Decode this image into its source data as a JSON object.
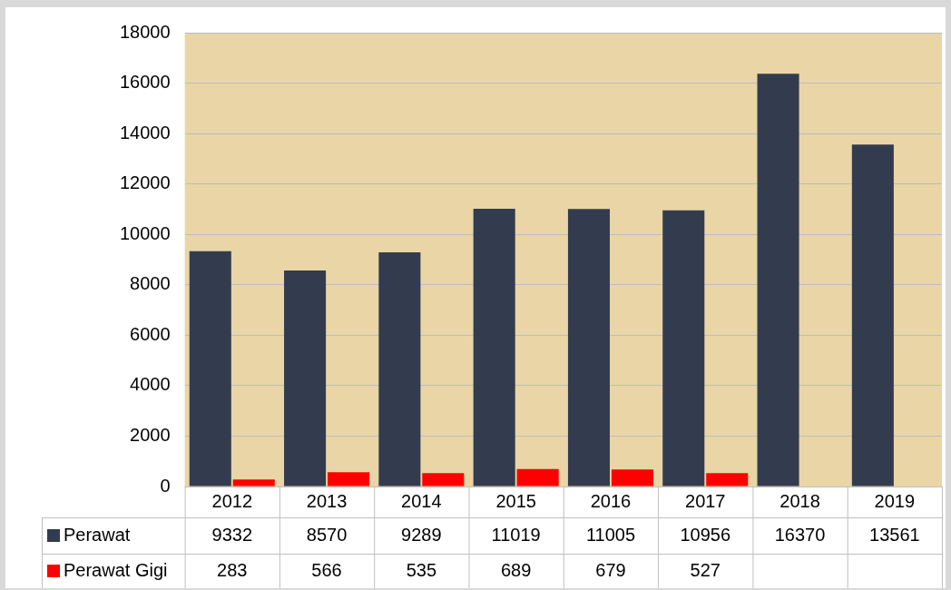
{
  "chart_data": {
    "type": "bar",
    "categories": [
      "2012",
      "2013",
      "2014",
      "2015",
      "2016",
      "2017",
      "2018",
      "2019"
    ],
    "series": [
      {
        "name": "Perawat",
        "color": "#333c4e",
        "values": [
          9332,
          8570,
          9289,
          11019,
          11005,
          10956,
          16370,
          13561
        ]
      },
      {
        "name": "Perawat Gigi",
        "color": "#ff0000",
        "values": [
          283,
          566,
          535,
          689,
          679,
          527,
          null,
          null
        ]
      }
    ],
    "ylim": [
      0,
      18000
    ],
    "yticks": [
      0,
      2000,
      4000,
      6000,
      8000,
      10000,
      12000,
      14000,
      16000,
      18000
    ],
    "grid": "y",
    "legend": "bottom left",
    "data_labels": true
  }
}
